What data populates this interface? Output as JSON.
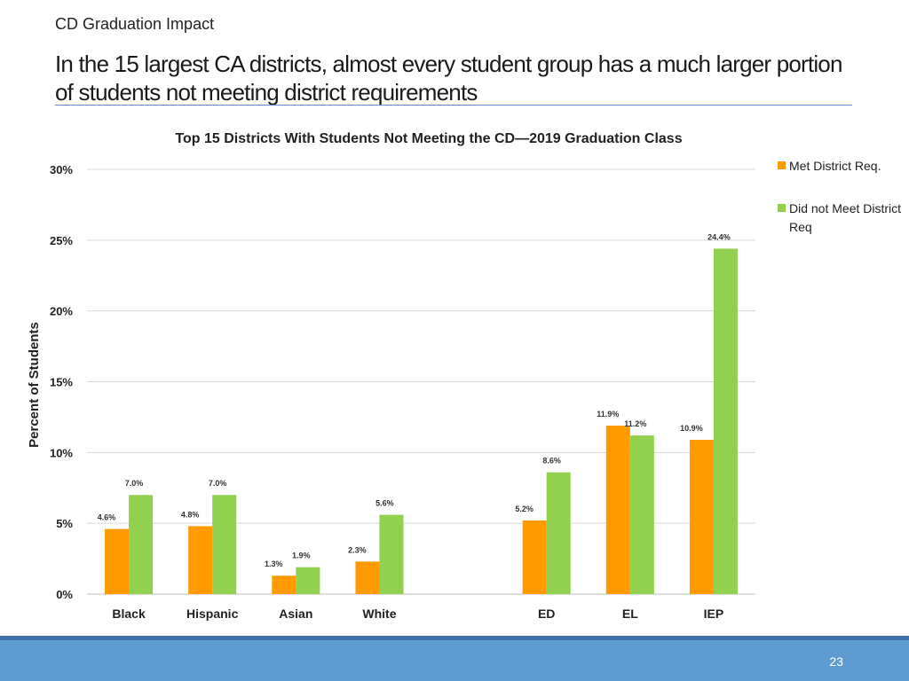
{
  "slide": {
    "kicker": "CD Graduation Impact",
    "headline": "In the 15 largest CA districts, almost every student group has a much larger portion of students not meeting district requirements",
    "page_number": "23"
  },
  "colors": {
    "met": "#ff9a00",
    "not_met": "#92d050",
    "grid": "#d9d9d9",
    "accent_rule": "#5a8fc8",
    "footer": "#5e9bd0"
  },
  "chart_data": {
    "type": "bar",
    "title": "Top 15 Districts With Students Not Meeting the CD—2019 Graduation Class",
    "ylabel": "Percent of Students",
    "xlabel": "",
    "ylim": [
      0,
      30
    ],
    "yticks": [
      "0%",
      "5%",
      "10%",
      "15%",
      "20%",
      "25%",
      "30%"
    ],
    "grid": true,
    "legend_position": "right",
    "categories": [
      "Black",
      "Hispanic",
      "Asian",
      "White",
      "",
      "ED",
      "EL",
      "IEP"
    ],
    "series": [
      {
        "name": "Met District Req.",
        "color": "#ff9a00",
        "values": [
          4.6,
          4.8,
          1.3,
          2.3,
          null,
          5.2,
          11.9,
          10.9
        ],
        "labels": [
          "4.6%",
          "4.8%",
          "1.3%",
          "2.3%",
          "",
          "5.2%",
          "11.9%",
          "10.9%"
        ]
      },
      {
        "name": "Did not Meet District Req",
        "color": "#92d050",
        "values": [
          7.0,
          7.0,
          1.9,
          5.6,
          null,
          8.6,
          11.2,
          24.4
        ],
        "labels": [
          "7.0%",
          "7.0%",
          "1.9%",
          "5.6%",
          "",
          "8.6%",
          "11.2%",
          "24.4%"
        ]
      }
    ]
  }
}
